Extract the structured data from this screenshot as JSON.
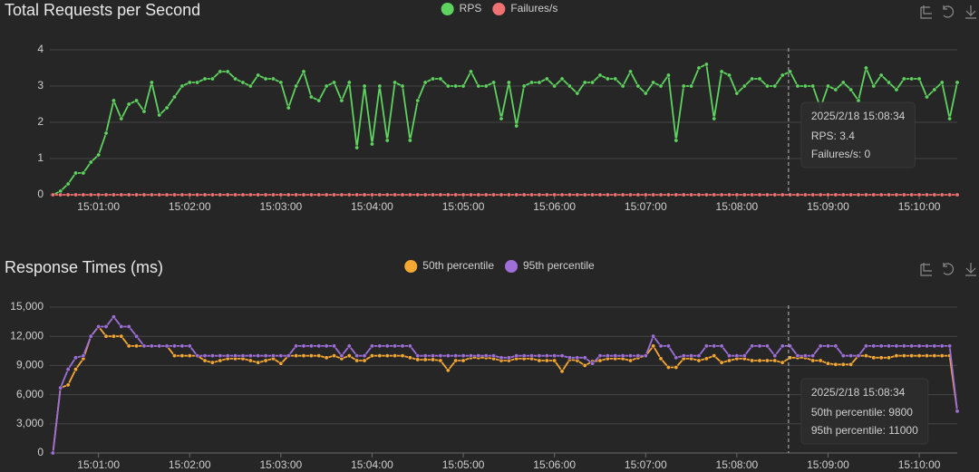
{
  "chart_data": [
    {
      "type": "line",
      "title": "Total Requests per Second",
      "x": [
        "15:00:30",
        "15:00:35",
        "15:00:40",
        "15:00:45",
        "15:00:50",
        "15:00:55",
        "15:01:00",
        "15:01:05",
        "15:01:10",
        "15:01:15",
        "15:01:20",
        "15:01:25",
        "15:01:30",
        "15:01:35",
        "15:01:40",
        "15:01:45",
        "15:01:50",
        "15:01:55",
        "15:02:00",
        "15:02:05",
        "15:02:10",
        "15:02:15",
        "15:02:20",
        "15:02:25",
        "15:02:30",
        "15:02:35",
        "15:02:40",
        "15:02:45",
        "15:02:50",
        "15:02:55",
        "15:03:00",
        "15:03:05",
        "15:03:10",
        "15:03:15",
        "15:03:20",
        "15:03:25",
        "15:03:30",
        "15:03:35",
        "15:03:40",
        "15:03:45",
        "15:03:50",
        "15:03:55",
        "15:04:00",
        "15:04:05",
        "15:04:10",
        "15:04:15",
        "15:04:20",
        "15:04:25",
        "15:04:30",
        "15:04:35",
        "15:04:40",
        "15:04:45",
        "15:04:50",
        "15:04:55",
        "15:05:00",
        "15:05:05",
        "15:05:10",
        "15:05:15",
        "15:05:20",
        "15:05:25",
        "15:05:30",
        "15:05:35",
        "15:05:40",
        "15:05:45",
        "15:05:50",
        "15:05:55",
        "15:06:00",
        "15:06:05",
        "15:06:10",
        "15:06:15",
        "15:06:20",
        "15:06:25",
        "15:06:30",
        "15:06:35",
        "15:06:40",
        "15:06:45",
        "15:06:50",
        "15:06:55",
        "15:07:00",
        "15:07:05",
        "15:07:10",
        "15:07:15",
        "15:07:20",
        "15:07:25",
        "15:07:30",
        "15:07:35",
        "15:07:40",
        "15:07:45",
        "15:07:50",
        "15:07:55",
        "15:08:00",
        "15:08:05",
        "15:08:10",
        "15:08:15",
        "15:08:20",
        "15:08:25",
        "15:08:30",
        "15:08:35",
        "15:08:40",
        "15:08:45",
        "15:08:50",
        "15:08:55",
        "15:09:00",
        "15:09:05",
        "15:09:10",
        "15:09:15",
        "15:09:20",
        "15:09:25",
        "15:09:30",
        "15:09:35",
        "15:09:40",
        "15:09:45",
        "15:09:50",
        "15:09:55",
        "15:10:00",
        "15:10:05",
        "15:10:10",
        "15:10:15",
        "15:10:20",
        "15:10:25"
      ],
      "series": [
        {
          "name": "RPS",
          "color": "#5fd35f",
          "values": [
            0,
            0.1,
            0.3,
            0.6,
            0.6,
            0.9,
            1.1,
            1.7,
            2.6,
            2.1,
            2.5,
            2.6,
            2.3,
            3.1,
            2.2,
            2.4,
            2.7,
            3.0,
            3.1,
            3.1,
            3.2,
            3.2,
            3.4,
            3.4,
            3.2,
            3.1,
            3.0,
            3.3,
            3.2,
            3.2,
            3.1,
            2.4,
            3.0,
            3.4,
            2.7,
            2.6,
            3.0,
            3.1,
            2.6,
            3.1,
            1.3,
            3.0,
            1.4,
            3.0,
            1.5,
            3.1,
            3.0,
            1.5,
            2.6,
            3.1,
            3.2,
            3.2,
            3.0,
            3.0,
            3.0,
            3.4,
            3.0,
            3.0,
            3.1,
            2.1,
            3.1,
            1.9,
            3.0,
            3.1,
            3.1,
            3.2,
            3.0,
            3.2,
            3.0,
            2.8,
            3.1,
            3.1,
            3.3,
            3.2,
            3.2,
            3.0,
            3.4,
            3.0,
            2.8,
            3.1,
            3.0,
            3.3,
            1.5,
            3.0,
            3.0,
            3.5,
            3.6,
            2.1,
            3.4,
            3.3,
            2.8,
            3.0,
            3.2,
            3.2,
            3.0,
            3.0,
            3.3,
            3.4,
            3.0,
            3.0,
            3.0,
            2.4,
            3.0,
            2.9,
            3.1,
            2.9,
            2.6,
            3.5,
            3.0,
            3.3,
            3.1,
            2.9,
            3.2,
            3.2,
            3.2,
            2.7,
            2.9,
            3.1,
            2.1,
            3.1
          ]
        },
        {
          "name": "Failures/s",
          "color": "#f07272",
          "values": [
            0,
            0,
            0,
            0,
            0,
            0,
            0,
            0,
            0,
            0,
            0,
            0,
            0,
            0,
            0,
            0,
            0,
            0,
            0,
            0,
            0,
            0,
            0,
            0,
            0,
            0,
            0,
            0,
            0,
            0,
            0,
            0,
            0,
            0,
            0,
            0,
            0,
            0,
            0,
            0,
            0,
            0,
            0,
            0,
            0,
            0,
            0,
            0,
            0,
            0,
            0,
            0,
            0,
            0,
            0,
            0,
            0,
            0,
            0,
            0,
            0,
            0,
            0,
            0,
            0,
            0,
            0,
            0,
            0,
            0,
            0,
            0,
            0,
            0,
            0,
            0,
            0,
            0,
            0,
            0,
            0,
            0,
            0,
            0,
            0,
            0,
            0,
            0,
            0,
            0,
            0,
            0,
            0,
            0,
            0,
            0,
            0,
            0,
            0,
            0,
            0,
            0,
            0,
            0,
            0,
            0,
            0,
            0,
            0,
            0,
            0,
            0,
            0,
            0,
            0,
            0,
            0,
            0,
            0,
            0
          ]
        }
      ],
      "xlim": [
        "15:00:28",
        "15:10:25"
      ],
      "xticks": [
        "15:01:00",
        "15:02:00",
        "15:03:00",
        "15:04:00",
        "15:05:00",
        "15:06:00",
        "15:07:00",
        "15:08:00",
        "15:09:00",
        "15:10:00"
      ],
      "ylim": [
        0,
        4
      ],
      "yticks": [
        0,
        1,
        2,
        3,
        4
      ],
      "grid": true,
      "legend": "top",
      "tooltip": {
        "title": "2025/2/18 15:08:34",
        "lines": [
          "RPS: 3.4",
          "Failures/s: 0"
        ]
      }
    },
    {
      "type": "line",
      "title": "Response Times (ms)",
      "x": [
        "15:00:30",
        "15:00:35",
        "15:00:40",
        "15:00:45",
        "15:00:50",
        "15:00:55",
        "15:01:00",
        "15:01:05",
        "15:01:10",
        "15:01:15",
        "15:01:20",
        "15:01:25",
        "15:01:30",
        "15:01:35",
        "15:01:40",
        "15:01:45",
        "15:01:50",
        "15:01:55",
        "15:02:00",
        "15:02:05",
        "15:02:10",
        "15:02:15",
        "15:02:20",
        "15:02:25",
        "15:02:30",
        "15:02:35",
        "15:02:40",
        "15:02:45",
        "15:02:50",
        "15:02:55",
        "15:03:00",
        "15:03:05",
        "15:03:10",
        "15:03:15",
        "15:03:20",
        "15:03:25",
        "15:03:30",
        "15:03:35",
        "15:03:40",
        "15:03:45",
        "15:03:50",
        "15:03:55",
        "15:04:00",
        "15:04:05",
        "15:04:10",
        "15:04:15",
        "15:04:20",
        "15:04:25",
        "15:04:30",
        "15:04:35",
        "15:04:40",
        "15:04:45",
        "15:04:50",
        "15:04:55",
        "15:05:00",
        "15:05:05",
        "15:05:10",
        "15:05:15",
        "15:05:20",
        "15:05:25",
        "15:05:30",
        "15:05:35",
        "15:05:40",
        "15:05:45",
        "15:05:50",
        "15:05:55",
        "15:06:00",
        "15:06:05",
        "15:06:10",
        "15:06:15",
        "15:06:20",
        "15:06:25",
        "15:06:30",
        "15:06:35",
        "15:06:40",
        "15:06:45",
        "15:06:50",
        "15:06:55",
        "15:07:00",
        "15:07:05",
        "15:07:10",
        "15:07:15",
        "15:07:20",
        "15:07:25",
        "15:07:30",
        "15:07:35",
        "15:07:40",
        "15:07:45",
        "15:07:50",
        "15:07:55",
        "15:08:00",
        "15:08:05",
        "15:08:10",
        "15:08:15",
        "15:08:20",
        "15:08:25",
        "15:08:30",
        "15:08:35",
        "15:08:40",
        "15:08:45",
        "15:08:50",
        "15:08:55",
        "15:09:00",
        "15:09:05",
        "15:09:10",
        "15:09:15",
        "15:09:20",
        "15:09:25",
        "15:09:30",
        "15:09:35",
        "15:09:40",
        "15:09:45",
        "15:09:50",
        "15:09:55",
        "15:10:00",
        "15:10:05",
        "15:10:10",
        "15:10:15",
        "15:10:20",
        "15:10:25"
      ],
      "series": [
        {
          "name": "50th percentile",
          "color": "#f5a733",
          "values": [
            0,
            6700,
            7000,
            8600,
            9700,
            12000,
            13000,
            12000,
            12000,
            12000,
            11000,
            11000,
            11000,
            11000,
            11000,
            11000,
            10000,
            10000,
            10000,
            10000,
            9500,
            9300,
            9500,
            9700,
            9700,
            9700,
            9500,
            9300,
            9500,
            9700,
            9200,
            10000,
            10000,
            10000,
            10000,
            10000,
            9800,
            10000,
            9700,
            10000,
            9500,
            9500,
            10000,
            10000,
            10000,
            10000,
            10000,
            9800,
            9600,
            9600,
            9600,
            9500,
            8500,
            9500,
            9500,
            9800,
            9800,
            9800,
            9700,
            9500,
            9500,
            9700,
            9700,
            9700,
            9500,
            9500,
            9500,
            8400,
            9600,
            9500,
            9000,
            9400,
            9500,
            9700,
            9700,
            9700,
            9500,
            9800,
            10000,
            11000,
            9700,
            8800,
            8800,
            9700,
            9700,
            9500,
            9700,
            10000,
            9300,
            9500,
            9700,
            9700,
            9500,
            9500,
            9500,
            9500,
            9300,
            9800,
            9800,
            9800,
            9500,
            9500,
            9200,
            9100,
            9100,
            9100,
            10000,
            10000,
            9800,
            9800,
            9800,
            10000,
            10000,
            10000,
            10000,
            10000,
            10000,
            10000,
            10000,
            4300
          ]
        },
        {
          "name": "95th percentile",
          "color": "#9e6fd8",
          "values": [
            0,
            6700,
            8600,
            9800,
            10000,
            12000,
            13000,
            13000,
            14000,
            13000,
            13000,
            12000,
            11000,
            11000,
            11000,
            11000,
            11000,
            11000,
            11000,
            10000,
            10000,
            10000,
            10000,
            10000,
            10000,
            10000,
            10000,
            10000,
            10000,
            10000,
            10000,
            10000,
            11000,
            11000,
            11000,
            11000,
            11000,
            11000,
            10000,
            11000,
            10000,
            10000,
            11000,
            11000,
            11000,
            11000,
            11000,
            11000,
            10000,
            10000,
            10000,
            10000,
            10000,
            10000,
            10000,
            10000,
            10000,
            10000,
            10000,
            9800,
            9800,
            10000,
            10000,
            10000,
            10000,
            10000,
            10000,
            10000,
            9800,
            9800,
            9800,
            9200,
            10000,
            10000,
            10000,
            10000,
            10000,
            10000,
            10000,
            12000,
            11000,
            11000,
            9800,
            10000,
            10000,
            10000,
            11000,
            11000,
            11000,
            10000,
            10000,
            10000,
            11000,
            11000,
            11000,
            10000,
            11000,
            11000,
            10000,
            10000,
            10000,
            11000,
            11000,
            11000,
            10000,
            10000,
            10000,
            11000,
            11000,
            11000,
            11000,
            11000,
            11000,
            11000,
            11000,
            11000,
            11000,
            11000,
            11000,
            4300
          ]
        }
      ],
      "xlim": [
        "15:00:28",
        "15:10:25"
      ],
      "xticks": [
        "15:01:00",
        "15:02:00",
        "15:03:00",
        "15:04:00",
        "15:05:00",
        "15:06:00",
        "15:07:00",
        "15:08:00",
        "15:09:00",
        "15:10:00"
      ],
      "ylim": [
        0,
        15000
      ],
      "yticks": [
        0,
        {
          "value": 3000,
          "label": "3,000"
        },
        {
          "value": 6000,
          "label": "6,000"
        },
        {
          "value": 9000,
          "label": "9,000"
        },
        {
          "value": 12000,
          "label": "12,000"
        },
        {
          "value": 15000,
          "label": "15,000"
        }
      ],
      "grid": true,
      "legend": "top",
      "tooltip": {
        "title": "2025/2/18 15:08:34",
        "lines": [
          "50th percentile: 9800",
          "95th percentile: 11000"
        ]
      }
    }
  ]
}
